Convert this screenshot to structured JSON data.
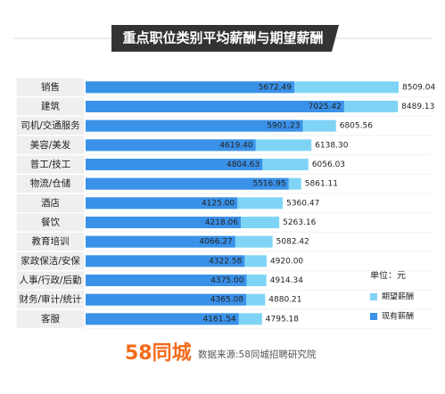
{
  "chart_data": {
    "type": "overlap-hbar",
    "title": "重点职位类别平均薪酬与期望薪酬",
    "categories": [
      "销售",
      "建筑",
      "司机/交通服务",
      "美容/美发",
      "普工/技工",
      "物流/仓储",
      "酒店",
      "餐饮",
      "教育培训",
      "家政保洁/安保",
      "人事/行政/后勤",
      "财务/审计/统计",
      "客服"
    ],
    "series": [
      {
        "name": "期望薪酬",
        "color": "#7fd4f6",
        "values": [
          8509.04,
          8489.13,
          6805.56,
          6138.3,
          6056.03,
          5861.11,
          5360.47,
          5263.16,
          5082.42,
          4920,
          4914.34,
          4880.21,
          4795.18
        ],
        "value_labels": [
          "8509.04",
          "8489.13",
          "6805.56",
          "6138.30",
          "6056.03",
          "5861.11",
          "5360.47",
          "5263.16",
          "5082.42",
          "4920.00",
          "4914.34",
          "4880.21",
          "4795.18"
        ]
      },
      {
        "name": "现有薪酬",
        "color": "#3a91e8",
        "values": [
          5672.49,
          7025.42,
          5901.23,
          4619.4,
          4804.63,
          5516.95,
          4125,
          4218.06,
          4066.27,
          4322.58,
          4375,
          4365.08,
          4161.54
        ],
        "value_labels": [
          "5672.49",
          "7025.42",
          "5901.23",
          "4619.40",
          "4804.63",
          "5516.95",
          "4125.00",
          "4218.06",
          "4066.27",
          "4322.58",
          "4375.00",
          "4365.08",
          "4161.54"
        ]
      }
    ],
    "unit": "单位：元",
    "logo": "58同城",
    "source": "数据来源:58同城招聘研究院"
  }
}
